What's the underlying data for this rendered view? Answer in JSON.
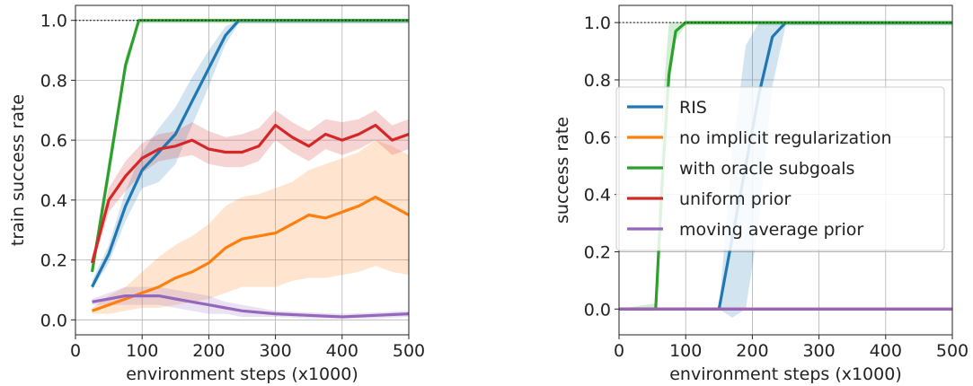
{
  "chart_data": [
    {
      "type": "line",
      "xlabel": "environment steps (x1000)",
      "ylabel": "train success rate",
      "xlim": [
        0,
        500
      ],
      "ylim": [
        -0.05,
        1.05
      ],
      "xticks": [
        "0",
        "100",
        "200",
        "300",
        "400",
        "500"
      ],
      "yticks": [
        "0.0",
        "0.2",
        "0.4",
        "0.6",
        "0.8",
        "1.0"
      ],
      "grid": true,
      "reference_line": 1.0,
      "series": [
        {
          "name": "RIS",
          "color": "#1f77b4",
          "x": [
            25,
            50,
            75,
            100,
            125,
            150,
            175,
            200,
            225,
            245,
            300,
            350,
            400,
            450,
            500
          ],
          "y": [
            0.11,
            0.22,
            0.38,
            0.5,
            0.56,
            0.62,
            0.73,
            0.84,
            0.95,
            1.0,
            1.0,
            1.0,
            1.0,
            1.0,
            1.0
          ],
          "lo": [
            0.1,
            0.19,
            0.33,
            0.44,
            0.46,
            0.52,
            0.65,
            0.78,
            0.92,
            0.99,
            0.99,
            0.99,
            0.99,
            0.99,
            0.99
          ],
          "hi": [
            0.13,
            0.25,
            0.43,
            0.56,
            0.64,
            0.71,
            0.81,
            0.9,
            0.98,
            1.0,
            1.0,
            1.0,
            1.0,
            1.0,
            1.0
          ]
        },
        {
          "name": "no implicit regularization",
          "color": "#ff7f0e",
          "x": [
            25,
            50,
            75,
            100,
            125,
            150,
            175,
            200,
            225,
            250,
            275,
            300,
            325,
            350,
            375,
            400,
            425,
            450,
            475,
            500
          ],
          "y": [
            0.03,
            0.05,
            0.07,
            0.09,
            0.11,
            0.14,
            0.16,
            0.19,
            0.24,
            0.27,
            0.28,
            0.29,
            0.32,
            0.35,
            0.34,
            0.36,
            0.38,
            0.41,
            0.38,
            0.35
          ],
          "lo": [
            0.02,
            0.02,
            0.03,
            0.04,
            0.04,
            0.05,
            0.06,
            0.07,
            0.09,
            0.11,
            0.11,
            0.11,
            0.13,
            0.14,
            0.14,
            0.15,
            0.16,
            0.18,
            0.16,
            0.15
          ],
          "hi": [
            0.04,
            0.08,
            0.11,
            0.16,
            0.21,
            0.25,
            0.28,
            0.32,
            0.38,
            0.41,
            0.42,
            0.44,
            0.46,
            0.5,
            0.52,
            0.54,
            0.56,
            0.6,
            0.58,
            0.55
          ]
        },
        {
          "name": "with oracle subgoals",
          "color": "#2ca02c",
          "x": [
            25,
            50,
            75,
            95,
            125,
            200,
            300,
            400,
            500
          ],
          "y": [
            0.16,
            0.5,
            0.85,
            1.0,
            1.0,
            1.0,
            1.0,
            1.0,
            1.0
          ],
          "lo": [
            0.14,
            0.46,
            0.82,
            0.99,
            0.99,
            0.99,
            0.99,
            0.99,
            0.99
          ],
          "hi": [
            0.18,
            0.54,
            0.88,
            1.0,
            1.0,
            1.0,
            1.0,
            1.0,
            1.0
          ]
        },
        {
          "name": "uniform prior",
          "color": "#d62728",
          "x": [
            25,
            50,
            75,
            100,
            125,
            150,
            175,
            200,
            225,
            250,
            275,
            300,
            325,
            350,
            375,
            400,
            425,
            450,
            475,
            500
          ],
          "y": [
            0.19,
            0.4,
            0.48,
            0.54,
            0.57,
            0.58,
            0.6,
            0.57,
            0.56,
            0.56,
            0.58,
            0.65,
            0.61,
            0.58,
            0.62,
            0.6,
            0.62,
            0.65,
            0.6,
            0.62
          ],
          "lo": [
            0.17,
            0.36,
            0.43,
            0.49,
            0.53,
            0.54,
            0.55,
            0.52,
            0.51,
            0.51,
            0.53,
            0.6,
            0.56,
            0.53,
            0.57,
            0.55,
            0.57,
            0.6,
            0.55,
            0.57
          ],
          "hi": [
            0.21,
            0.44,
            0.53,
            0.59,
            0.62,
            0.63,
            0.66,
            0.63,
            0.61,
            0.62,
            0.64,
            0.7,
            0.66,
            0.63,
            0.67,
            0.66,
            0.67,
            0.7,
            0.65,
            0.67
          ]
        },
        {
          "name": "moving average prior",
          "color": "#9467bd",
          "x": [
            25,
            50,
            75,
            100,
            125,
            150,
            175,
            200,
            225,
            250,
            300,
            350,
            400,
            450,
            500
          ],
          "y": [
            0.06,
            0.07,
            0.08,
            0.08,
            0.08,
            0.07,
            0.06,
            0.05,
            0.04,
            0.03,
            0.02,
            0.015,
            0.01,
            0.015,
            0.02
          ],
          "lo": [
            0.05,
            0.05,
            0.05,
            0.05,
            0.05,
            0.04,
            0.03,
            0.02,
            0.02,
            0.01,
            0.01,
            0.005,
            0.005,
            0.005,
            0.01
          ],
          "hi": [
            0.07,
            0.09,
            0.11,
            0.11,
            0.11,
            0.1,
            0.09,
            0.08,
            0.06,
            0.05,
            0.03,
            0.025,
            0.02,
            0.025,
            0.03
          ]
        }
      ]
    },
    {
      "type": "line",
      "xlabel": "environment steps (x1000)",
      "ylabel": "success rate",
      "xlim": [
        0,
        500
      ],
      "ylim": [
        -0.09,
        1.06
      ],
      "xticks": [
        "0",
        "100",
        "200",
        "300",
        "400",
        "500"
      ],
      "yticks": [
        "0.0",
        "0.2",
        "0.4",
        "0.6",
        "0.8",
        "1.0"
      ],
      "grid": true,
      "reference_line": 1.0,
      "legend": "center",
      "series": [
        {
          "name": "RIS",
          "color": "#1f77b4",
          "x": [
            0,
            150,
            170,
            190,
            210,
            230,
            250,
            300,
            400,
            500
          ],
          "y": [
            0.0,
            0.0,
            0.25,
            0.5,
            0.75,
            0.95,
            1.0,
            1.0,
            1.0,
            1.0
          ],
          "lo": [
            0.0,
            0.0,
            -0.03,
            0.0,
            0.3,
            0.78,
            0.99,
            0.99,
            0.99,
            0.99
          ],
          "hi": [
            0.0,
            0.0,
            0.55,
            0.92,
            1.0,
            1.0,
            1.0,
            1.0,
            1.0,
            1.0
          ]
        },
        {
          "name": "no implicit regularization",
          "color": "#ff7f0e",
          "x": [
            0,
            500
          ],
          "y": [
            0.0,
            0.0
          ]
        },
        {
          "name": "with oracle subgoals",
          "color": "#2ca02c",
          "x": [
            0,
            55,
            65,
            75,
            85,
            100,
            200,
            300,
            400,
            500
          ],
          "y": [
            0.0,
            0.0,
            0.45,
            0.82,
            0.97,
            1.0,
            1.0,
            1.0,
            1.0,
            1.0
          ],
          "lo": [
            0.0,
            0.0,
            0.4,
            0.76,
            0.94,
            0.99,
            0.99,
            0.99,
            0.99,
            0.99
          ],
          "hi": [
            0.0,
            0.02,
            0.7,
            1.0,
            1.0,
            1.0,
            1.0,
            1.0,
            1.0,
            1.0
          ]
        },
        {
          "name": "uniform prior",
          "color": "#d62728",
          "x": [
            0,
            500
          ],
          "y": [
            0.0,
            0.0
          ]
        },
        {
          "name": "moving average prior",
          "color": "#9467bd",
          "x": [
            0,
            500
          ],
          "y": [
            0.0,
            0.0
          ]
        }
      ]
    }
  ]
}
